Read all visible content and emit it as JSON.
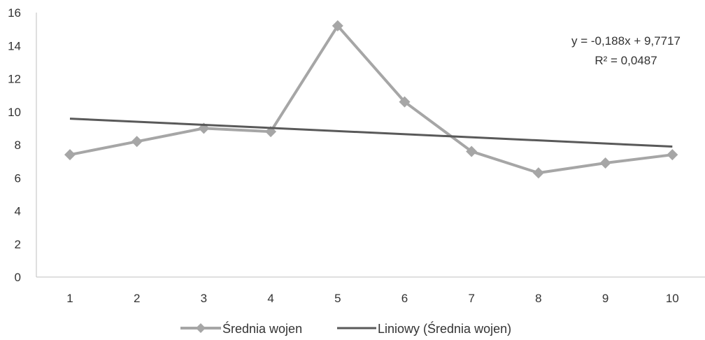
{
  "chart_data": {
    "type": "line",
    "categories": [
      "1",
      "2",
      "3",
      "4",
      "5",
      "6",
      "7",
      "8",
      "9",
      "10"
    ],
    "series": [
      {
        "name": "Średnia wojen",
        "values": [
          7.4,
          8.2,
          9.0,
          8.8,
          15.2,
          10.6,
          7.6,
          6.3,
          6.9,
          7.4
        ],
        "color": "#a6a6a6",
        "marker": "diamond"
      }
    ],
    "trendline": {
      "name": "Liniowy (Średnia wojen)",
      "slope": -0.188,
      "intercept": 9.7717,
      "color": "#595959",
      "equation": "y = -0,188x + 9,7717",
      "r_squared": "R² = 0,0487"
    },
    "ylim": [
      0,
      16
    ],
    "yticks": [
      0,
      2,
      4,
      6,
      8,
      10,
      12,
      14,
      16
    ],
    "ytick_labels": [
      "0",
      "2",
      "4",
      "6",
      "8",
      "10",
      "12",
      "14",
      "16"
    ],
    "grid": false,
    "legend_position": "bottom"
  }
}
